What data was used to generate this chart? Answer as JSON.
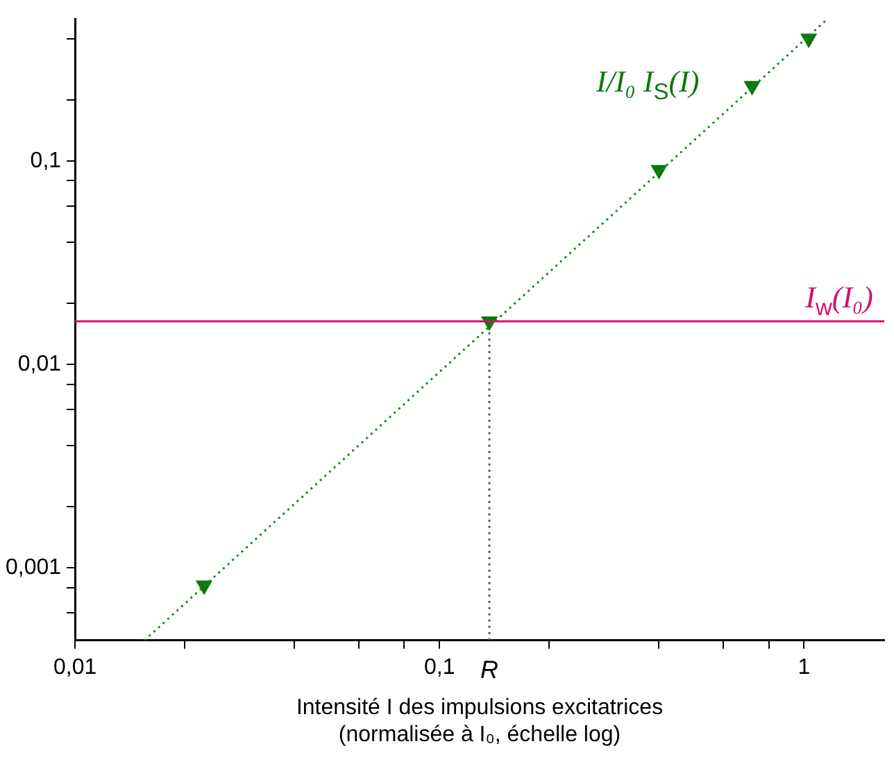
{
  "chart_data": {
    "type": "line",
    "xlabel": "Intensité I des impulsions excitatrices\n(normalisée à I₀, échelle log)",
    "log": "xy",
    "grid": false,
    "legend": false,
    "xlim": [
      0.01,
      1.66
    ],
    "ylim": [
      0.00044,
      0.5
    ],
    "xticks": [
      {
        "value": 0.01,
        "label": "0,01"
      },
      {
        "value": 0.02,
        "label": null
      },
      {
        "value": 0.04,
        "label": null
      },
      {
        "value": 0.06,
        "label": null
      },
      {
        "value": 0.08,
        "label": null
      },
      {
        "value": 0.1,
        "label": "0,1"
      },
      {
        "value": 0.2,
        "label": null
      },
      {
        "value": 0.4,
        "label": null
      },
      {
        "value": 0.6,
        "label": null
      },
      {
        "value": 0.8,
        "label": null
      },
      {
        "value": 1,
        "label": "1"
      }
    ],
    "yticks": [
      {
        "value": 0.0006,
        "label": null
      },
      {
        "value": 0.0008,
        "label": null
      },
      {
        "value": 0.001,
        "label": "0,001"
      },
      {
        "value": 0.002,
        "label": null
      },
      {
        "value": 0.004,
        "label": null
      },
      {
        "value": 0.006,
        "label": null
      },
      {
        "value": 0.008,
        "label": null
      },
      {
        "value": 0.01,
        "label": "0,01"
      },
      {
        "value": 0.02,
        "label": null
      },
      {
        "value": 0.04,
        "label": null
      },
      {
        "value": 0.06,
        "label": null
      },
      {
        "value": 0.08,
        "label": null
      },
      {
        "value": 0.1,
        "label": "0,1"
      },
      {
        "value": 0.2,
        "label": null
      },
      {
        "value": 0.4,
        "label": null
      }
    ],
    "series": [
      {
        "type": "line",
        "color": "#1a8a1a",
        "line_style": "dotted",
        "marker": "none",
        "x": [
          0.0155,
          1.16
        ],
        "values": [
          0.00044,
          0.5
        ]
      },
      {
        "type": "scatter",
        "name": "I/I₀ I$_{S}$(I)",
        "color": "#0a7a0a",
        "marker": "triangle",
        "x": [
          0.0226,
          0.137,
          0.4,
          0.72,
          1.03
        ],
        "values": [
          0.00082,
          0.0163,
          0.0906,
          0.234,
          0.4
        ]
      },
      {
        "type": "line",
        "color": "#555555",
        "line_style": "dotted",
        "marker": "none",
        "x": [
          0.137,
          0.137
        ],
        "values": [
          0.00044,
          0.0163
        ]
      }
    ],
    "ref_lines": [
      {
        "axis": "y",
        "value": 0.0163,
        "label": "I$_{w}$(I₀)",
        "color": "#d0106e",
        "line_style": "solid"
      }
    ],
    "annotations": [
      {
        "text": "R",
        "x": 0.137,
        "y": 0.00044
      }
    ]
  }
}
